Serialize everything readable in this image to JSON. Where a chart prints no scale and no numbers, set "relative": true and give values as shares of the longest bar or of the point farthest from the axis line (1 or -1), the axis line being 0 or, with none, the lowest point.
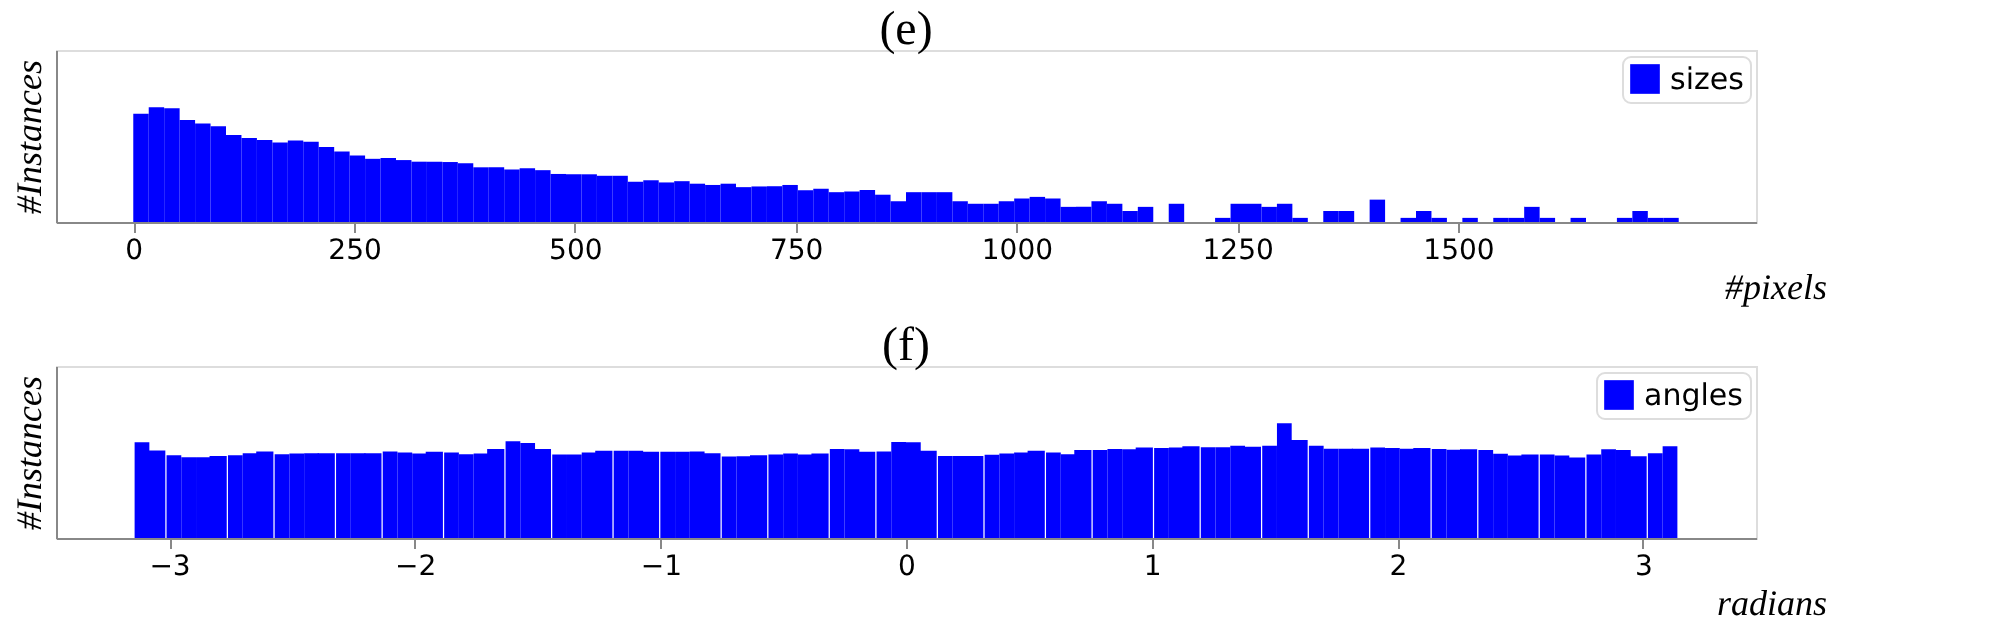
{
  "chart_data": [
    {
      "type": "bar",
      "title": "(e)",
      "xlabel": "#pixels",
      "ylabel": "#Instances",
      "relative": true,
      "legend": "top right",
      "x": [
        8.75,
        26.25,
        43.75,
        61.25,
        78.75,
        96.25,
        113.75,
        131.25,
        148.75,
        166.25,
        183.75,
        201.25,
        218.75,
        236.25,
        253.75,
        271.25,
        288.75,
        306.25,
        323.75,
        341.25,
        358.75,
        376.25,
        393.75,
        411.25,
        428.75,
        446.25,
        463.75,
        481.25,
        498.75,
        516.25,
        533.75,
        551.25,
        568.75,
        586.25,
        603.75,
        621.25,
        638.75,
        656.25,
        673.75,
        691.25,
        708.75,
        726.25,
        743.75,
        761.25,
        778.75,
        796.25,
        813.75,
        831.25,
        848.75,
        866.25,
        883.75,
        901.25,
        918.75,
        936.25,
        953.75,
        971.25,
        988.75,
        1006.25,
        1023.75,
        1041.25,
        1058.75,
        1076.25,
        1093.75,
        1111.25,
        1128.75,
        1146.25,
        1163.75,
        1181.25,
        1198.75,
        1216.25,
        1233.75,
        1251.25,
        1268.75,
        1286.25,
        1303.75,
        1321.25,
        1338.75,
        1356.25,
        1373.75,
        1391.25,
        1408.75,
        1426.25,
        1443.75,
        1461.25,
        1478.75,
        1496.25,
        1513.75,
        1531.25,
        1548.75,
        1566.25,
        1583.75,
        1601.25,
        1618.75,
        1636.25,
        1653.75,
        1671.25,
        1688.75,
        1706.25,
        1723.75,
        1741.25
      ],
      "xlim": [
        -87.5,
        1837.5
      ],
      "xticks": [
        0,
        250,
        500,
        750,
        1000,
        1250,
        1500
      ],
      "series": [
        {
          "name": "sizes",
          "color": "#0000ff",
          "values": [
            0.945,
            1,
            0.992,
            0.89,
            0.858,
            0.836,
            0.759,
            0.732,
            0.715,
            0.693,
            0.71,
            0.699,
            0.655,
            0.614,
            0.581,
            0.551,
            0.559,
            0.54,
            0.526,
            0.526,
            0.523,
            0.512,
            0.477,
            0.477,
            0.458,
            0.468,
            0.452,
            0.419,
            0.416,
            0.416,
            0.403,
            0.403,
            0.351,
            0.364,
            0.345,
            0.356,
            0.334,
            0.323,
            0.334,
            0.304,
            0.31,
            0.312,
            0.323,
            0.277,
            0.29,
            0.26,
            0.266,
            0.279,
            0.238,
            0.181,
            0.26,
            0.26,
            0.26,
            0.181,
            0.159,
            0.159,
            0.181,
            0.205,
            0.219,
            0.205,
            0.132,
            0.132,
            0.181,
            0.159,
            0.096,
            0.132,
            0,
            0.159,
            0,
            0,
            0.036,
            0.159,
            0.159,
            0.132,
            0.159,
            0.036,
            0,
            0.096,
            0.096,
            0,
            0.195,
            0,
            0.036,
            0.096,
            0.036,
            0,
            0.036,
            0,
            0.036,
            0.036,
            0.132,
            0.036,
            0,
            0.036,
            0,
            0,
            0.036,
            0.096,
            0.036,
            0.036
          ]
        }
      ]
    },
    {
      "type": "bar",
      "title": "(f)",
      "xlabel": "radians",
      "ylabel": "#Instances",
      "relative": true,
      "legend": "top right",
      "x": [
        -3.11,
        -3.05,
        -2.98,
        -2.92,
        -2.86,
        -2.8,
        -2.73,
        -2.67,
        -2.61,
        -2.54,
        -2.48,
        -2.42,
        -2.36,
        -2.29,
        -2.23,
        -2.17,
        -2.1,
        -2.04,
        -1.98,
        -1.92,
        -1.85,
        -1.79,
        -1.73,
        -1.67,
        -1.6,
        -1.54,
        -1.48,
        -1.41,
        -1.35,
        -1.29,
        -1.23,
        -1.16,
        -1.1,
        -1.04,
        -0.97,
        -0.91,
        -0.85,
        -0.79,
        -0.72,
        -0.66,
        -0.6,
        -0.53,
        -0.47,
        -0.41,
        -0.35,
        -0.28,
        -0.22,
        -0.16,
        -0.09,
        -0.03,
        0.03,
        0.09,
        0.16,
        0.22,
        0.28,
        0.35,
        0.41,
        0.47,
        0.53,
        0.6,
        0.66,
        0.72,
        0.79,
        0.85,
        0.91,
        0.97,
        1.04,
        1.1,
        1.16,
        1.23,
        1.29,
        1.35,
        1.41,
        1.48,
        1.54,
        1.6,
        1.67,
        1.73,
        1.79,
        1.85,
        1.92,
        1.98,
        2.04,
        2.1,
        2.17,
        2.23,
        2.29,
        2.36,
        2.42,
        2.48,
        2.54,
        2.61,
        2.67,
        2.73,
        2.8,
        2.86,
        2.92,
        2.98,
        3.05,
        3.11
      ],
      "xlim": [
        -3.46,
        3.46
      ],
      "xticks": [
        {
          "value": -3,
          "label": "−3"
        },
        {
          "value": -2,
          "label": "−2"
        },
        {
          "value": -1,
          "label": "−1"
        },
        0,
        1,
        2,
        3
      ],
      "series": [
        {
          "name": "angles",
          "color": "#0000ff",
          "values": [
            0.834,
            0.764,
            0.722,
            0.704,
            0.704,
            0.716,
            0.722,
            0.74,
            0.755,
            0.731,
            0.737,
            0.74,
            0.74,
            0.74,
            0.74,
            0.74,
            0.755,
            0.746,
            0.737,
            0.752,
            0.746,
            0.731,
            0.737,
            0.776,
            0.843,
            0.828,
            0.776,
            0.728,
            0.728,
            0.746,
            0.761,
            0.761,
            0.761,
            0.752,
            0.752,
            0.752,
            0.755,
            0.74,
            0.71,
            0.713,
            0.722,
            0.728,
            0.737,
            0.728,
            0.737,
            0.776,
            0.773,
            0.752,
            0.755,
            0.837,
            0.834,
            0.761,
            0.716,
            0.716,
            0.716,
            0.725,
            0.737,
            0.746,
            0.761,
            0.746,
            0.731,
            0.767,
            0.767,
            0.776,
            0.773,
            0.789,
            0.785,
            0.789,
            0.801,
            0.792,
            0.792,
            0.804,
            0.795,
            0.804,
            1,
            0.855,
            0.804,
            0.779,
            0.779,
            0.779,
            0.789,
            0.785,
            0.779,
            0.785,
            0.776,
            0.77,
            0.773,
            0.767,
            0.734,
            0.719,
            0.728,
            0.728,
            0.719,
            0.701,
            0.728,
            0.773,
            0.767,
            0.713,
            0.74,
            0.801
          ]
        }
      ]
    }
  ]
}
